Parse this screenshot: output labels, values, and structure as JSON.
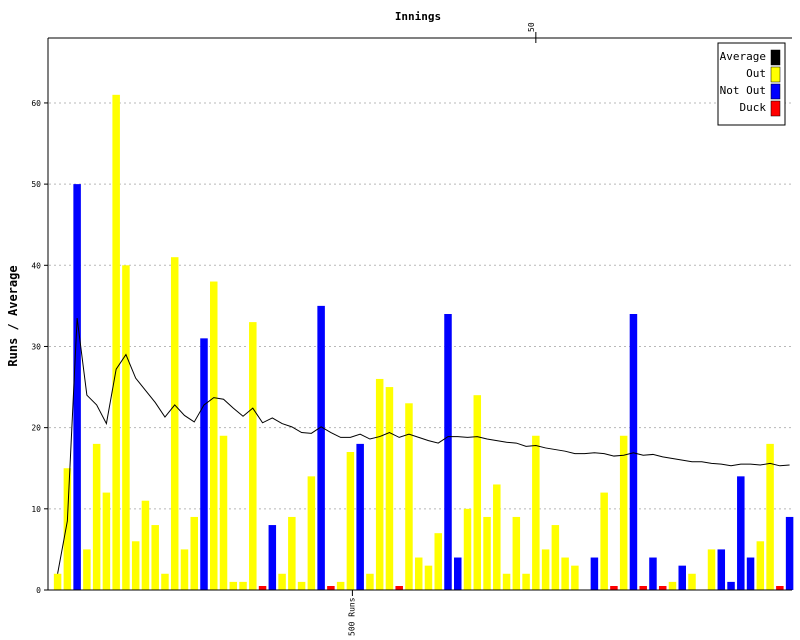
{
  "chart_data": {
    "type": "bar",
    "title": "Innings",
    "ylabel": "Runs / Average",
    "ylim": [
      0,
      68
    ],
    "yticks": [
      0,
      10,
      20,
      30,
      40,
      50,
      60
    ],
    "top_ticks": [
      {
        "innings": 50,
        "label": "50"
      }
    ],
    "bottom_markers": [
      {
        "innings": 31,
        "label": "500 Runs"
      }
    ],
    "grid": true,
    "legend_position": "top-right",
    "legend": [
      {
        "name": "Average",
        "color": "#000000"
      },
      {
        "name": "Out",
        "color": "#ffff00"
      },
      {
        "name": "Not Out",
        "color": "#0000ff"
      },
      {
        "name": "Duck",
        "color": "#ff0000"
      }
    ],
    "innings": [
      1,
      2,
      3,
      4,
      5,
      6,
      7,
      8,
      9,
      10,
      11,
      12,
      13,
      14,
      15,
      16,
      17,
      18,
      19,
      20,
      21,
      22,
      23,
      24,
      25,
      26,
      27,
      28,
      29,
      30,
      31,
      32,
      33,
      34,
      35,
      36,
      37,
      38,
      39,
      40,
      41,
      42,
      43,
      44,
      45,
      46,
      47,
      48,
      49,
      50,
      51,
      52,
      53,
      54,
      55,
      56,
      57,
      58,
      59,
      60,
      61,
      62,
      63,
      64,
      65,
      66,
      67,
      68,
      69,
      70,
      71,
      72,
      73,
      74,
      75,
      76
    ],
    "runs": [
      2,
      15,
      50,
      5,
      18,
      12,
      61,
      40,
      6,
      11,
      8,
      2,
      41,
      5,
      9,
      31,
      38,
      19,
      1,
      1,
      33,
      0,
      8,
      2,
      9,
      1,
      14,
      35,
      0,
      1,
      17,
      18,
      2,
      26,
      25,
      0,
      23,
      4,
      3,
      7,
      34,
      4,
      10,
      24,
      9,
      13,
      2,
      9,
      2,
      19,
      5,
      8,
      4,
      3,
      0,
      4,
      12,
      0,
      19,
      34,
      0,
      4,
      0,
      1,
      3,
      2,
      0,
      5,
      5,
      1,
      14,
      4,
      6,
      18,
      0,
      9
    ],
    "status": [
      "out",
      "out",
      "notout",
      "out",
      "out",
      "out",
      "out",
      "out",
      "out",
      "out",
      "out",
      "out",
      "out",
      "out",
      "out",
      "notout",
      "out",
      "out",
      "out",
      "out",
      "out",
      "duck",
      "notout",
      "out",
      "out",
      "out",
      "out",
      "notout",
      "duck",
      "out",
      "out",
      "notout",
      "out",
      "out",
      "out",
      "duck",
      "out",
      "out",
      "out",
      "out",
      "notout",
      "notout",
      "out",
      "out",
      "out",
      "out",
      "out",
      "out",
      "out",
      "out",
      "out",
      "out",
      "out",
      "out",
      "none",
      "notout",
      "out",
      "duck",
      "out",
      "notout",
      "duck",
      "notout",
      "duck",
      "out",
      "notout",
      "out",
      "none",
      "out",
      "notout",
      "notout",
      "notout",
      "notout",
      "out",
      "out",
      "duck",
      "notout"
    ],
    "average": [
      2,
      8.5,
      33.5,
      24,
      22.8,
      20.5,
      27.2,
      29,
      26.1,
      24.6,
      23.1,
      21.3,
      22.8,
      21.5,
      20.7,
      22.8,
      23.7,
      23.5,
      22.4,
      21.4,
      22.4,
      20.6,
      21.2,
      20.5,
      20.1,
      19.4,
      19.3,
      20.1,
      19.4,
      18.8,
      18.8,
      19.2,
      18.6,
      18.9,
      19.4,
      18.8,
      19.2,
      18.8,
      18.4,
      18.1,
      18.9,
      18.9,
      18.8,
      18.9,
      18.6,
      18.4,
      18.2,
      18.1,
      17.7,
      17.8,
      17.5,
      17.3,
      17.1,
      16.8,
      16.8,
      16.9,
      16.8,
      16.5,
      16.6,
      16.9,
      16.6,
      16.7,
      16.4,
      16.2,
      16,
      15.8,
      15.8,
      15.6,
      15.5,
      15.3,
      15.5,
      15.5,
      15.4,
      15.6,
      15.3,
      15.4
    ]
  }
}
